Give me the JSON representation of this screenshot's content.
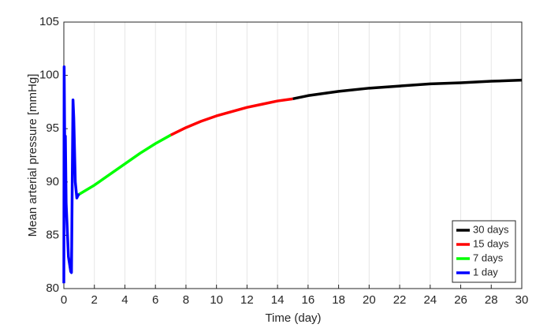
{
  "chart_data": {
    "type": "line",
    "xlabel": "Time (day)",
    "ylabel": "Mean arterial pressure [mmHg]",
    "xlim": [
      0,
      30
    ],
    "xticks": [
      0,
      2,
      4,
      6,
      8,
      10,
      12,
      14,
      16,
      18,
      20,
      22,
      24,
      26,
      28,
      30
    ],
    "ylim": [
      80,
      105
    ],
    "yticks": [
      80,
      85,
      90,
      95,
      100,
      105
    ],
    "xgrid": true,
    "legend": "lower right",
    "series": [
      {
        "name": "30 days",
        "color": "#000000",
        "x": [
          15,
          16,
          18,
          20,
          22,
          24,
          26,
          28,
          30
        ],
        "values": [
          97.8,
          98.1,
          98.5,
          98.8,
          99.0,
          99.2,
          99.3,
          99.45,
          99.55
        ]
      },
      {
        "name": "15 days",
        "color": "#ff0000",
        "x": [
          7,
          8,
          9,
          10,
          11,
          12,
          13,
          14,
          15
        ],
        "values": [
          94.4,
          95.1,
          95.7,
          96.2,
          96.6,
          97.0,
          97.3,
          97.6,
          97.8
        ]
      },
      {
        "name": "7 days",
        "color": "#00ff00",
        "x": [
          0.95,
          2,
          3,
          4,
          5,
          6,
          7
        ],
        "values": [
          88.8,
          89.7,
          90.7,
          91.7,
          92.7,
          93.6,
          94.4
        ]
      },
      {
        "name": "1 day",
        "color": "#0000ff",
        "x": [
          0,
          0.02,
          0.05,
          0.08,
          0.1,
          0.15,
          0.3,
          0.45,
          0.5,
          0.55,
          0.6,
          0.65,
          0.75,
          0.85,
          0.95,
          1.0
        ],
        "values": [
          80.5,
          100.8,
          95,
          90,
          94.3,
          88,
          83,
          81.6,
          81.5,
          90,
          97.7,
          96,
          90,
          88.5,
          88.8,
          88.7
        ]
      }
    ]
  }
}
